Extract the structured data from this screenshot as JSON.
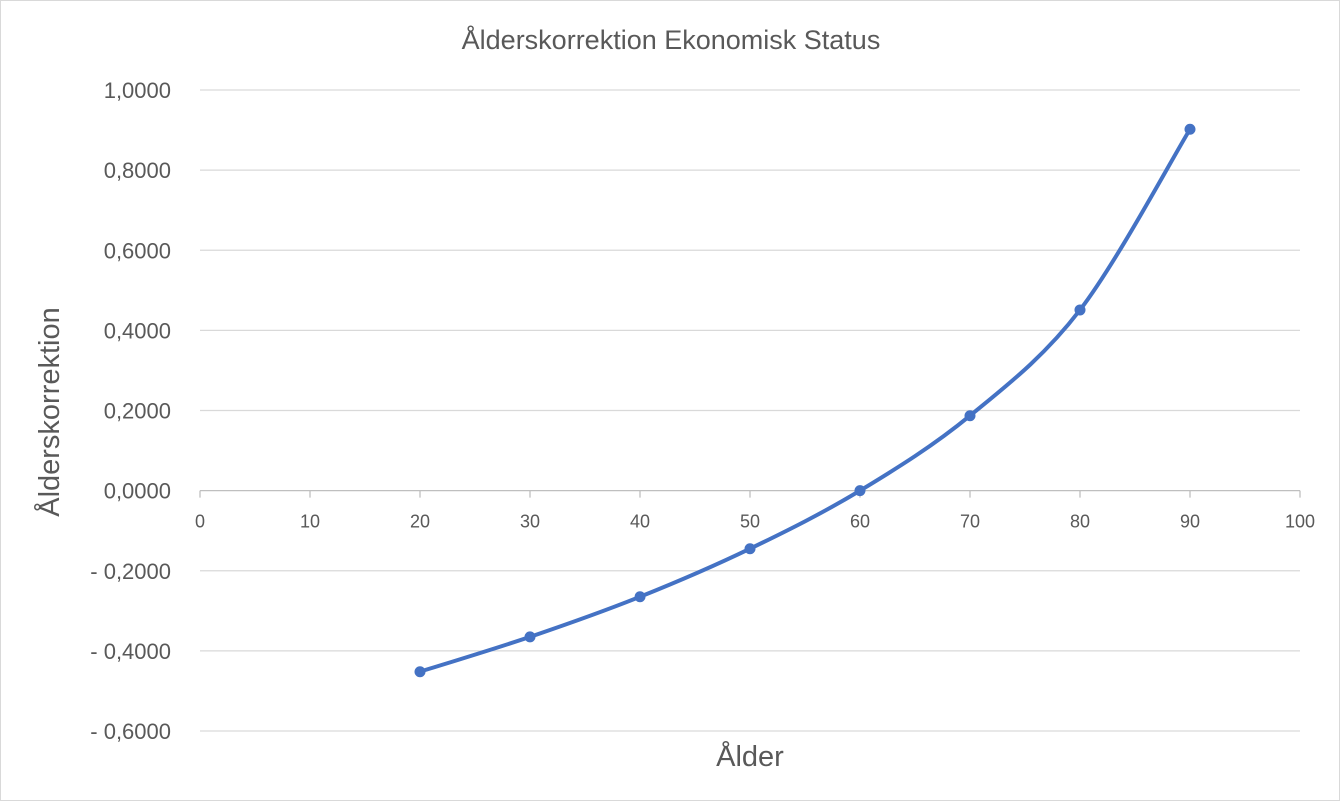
{
  "chart_data": {
    "type": "line",
    "title": "Ålderskorrektion Ekonomisk Status",
    "xlabel": "Ålder",
    "ylabel": "Ålderskorrektion",
    "xlim": [
      0,
      100
    ],
    "ylim": [
      -0.6,
      1.0
    ],
    "x_ticks": [
      0,
      10,
      20,
      30,
      40,
      50,
      60,
      70,
      80,
      90,
      100
    ],
    "x_tick_labels": [
      "0",
      "10",
      "20",
      "30",
      "40",
      "50",
      "60",
      "70",
      "80",
      "90",
      "100"
    ],
    "y_ticks": [
      1.0,
      0.8,
      0.6,
      0.4,
      0.2,
      0.0,
      -0.2,
      -0.4,
      -0.6
    ],
    "y_tick_labels": [
      "1,0000",
      "0,8000",
      "0,6000",
      "0,4000",
      "0,2000",
      "0,0000",
      "- 0,2000",
      "- 0,4000",
      "- 0,6000"
    ],
    "grid": true,
    "smooth": true,
    "color": "#4472c4",
    "series": [
      {
        "x": [
          20,
          30,
          40,
          50,
          60,
          70,
          80,
          90
        ],
        "values": [
          -0.452,
          -0.365,
          -0.265,
          -0.145,
          0.0,
          0.187,
          0.451,
          0.902
        ]
      }
    ]
  }
}
